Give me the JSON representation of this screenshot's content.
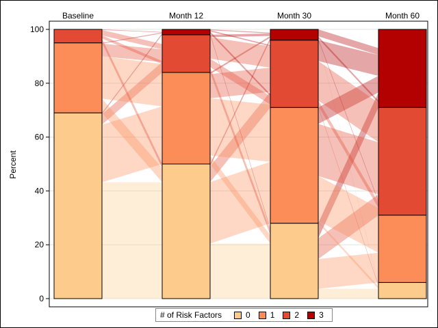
{
  "chart_data": {
    "type": "bar",
    "subtype": "stacked-bar-with-flows",
    "title": "",
    "xlabel": "",
    "ylabel": "Percent",
    "ylim": [
      0,
      100
    ],
    "yticks": [
      0,
      20,
      40,
      60,
      80,
      100
    ],
    "grid": true,
    "categories": [
      "Baseline",
      "Month 12",
      "Month 30",
      "Month 60"
    ],
    "series": [
      {
        "name": "0",
        "color": "#FDCB8B",
        "values": [
          69,
          50,
          28,
          6
        ]
      },
      {
        "name": "1",
        "color": "#FC8D59",
        "values": [
          26,
          34,
          43,
          25
        ]
      },
      {
        "name": "2",
        "color": "#E34A33",
        "values": [
          5,
          14,
          25,
          40
        ]
      },
      {
        "name": "3",
        "color": "#B30000",
        "values": [
          0,
          2,
          4,
          29
        ]
      }
    ],
    "legend": {
      "title": "# of Risk Factors",
      "placement": "bottom"
    }
  }
}
